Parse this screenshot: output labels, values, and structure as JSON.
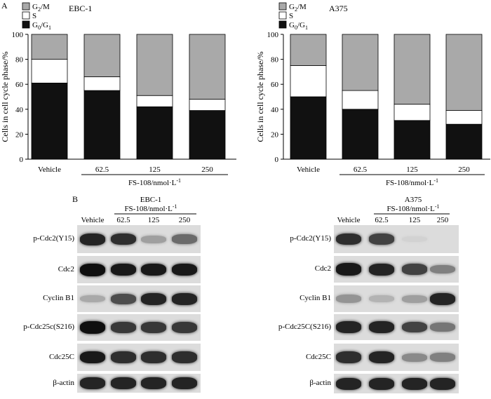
{
  "panel_a_letter": "A",
  "panel_b_letter": "B",
  "chart_data": [
    {
      "type": "bar",
      "stacked": true,
      "title": "EBC-1",
      "categories": [
        "Vehicle",
        "62.5",
        "125",
        "250"
      ],
      "xlabel": "FS-108/nmol·L",
      "xlabel_superscript": "-1",
      "ylabel": "Cells in cell cycle phase/%",
      "ylim": [
        0,
        100
      ],
      "yticks": [
        "0",
        "20",
        "40",
        "60",
        "80",
        "100"
      ],
      "legend_position": "top-left",
      "series": [
        {
          "name": "G0/G1",
          "color": "#111111",
          "values": [
            61,
            55,
            42,
            39
          ]
        },
        {
          "name": "S",
          "color": "#ffffff",
          "values": [
            19,
            11,
            9,
            9
          ]
        },
        {
          "name": "G2/M",
          "color": "#a9a9a9",
          "values": [
            20,
            34,
            49,
            52
          ]
        }
      ]
    },
    {
      "type": "bar",
      "stacked": true,
      "title": "A375",
      "categories": [
        "Vehicle",
        "62.5",
        "125",
        "250"
      ],
      "xlabel": "FS-108/nmol·L",
      "xlabel_superscript": "-1",
      "ylabel": "Cells in cell cycle phase/%",
      "ylim": [
        0,
        100
      ],
      "yticks": [
        "0",
        "20",
        "40",
        "60",
        "80",
        "100"
      ],
      "legend_position": "top-left",
      "series": [
        {
          "name": "G0/G1",
          "color": "#111111",
          "values": [
            50,
            40,
            31,
            28
          ]
        },
        {
          "name": "S",
          "color": "#ffffff",
          "values": [
            25,
            15,
            13,
            11
          ]
        },
        {
          "name": "G2/M",
          "color": "#a9a9a9",
          "values": [
            25,
            45,
            56,
            61
          ]
        }
      ]
    }
  ],
  "legend_labels": [
    {
      "main": "G",
      "sub": "2",
      "rest": "/M",
      "sub2": "",
      "color": "#a9a9a9"
    },
    {
      "main": "S",
      "sub": "",
      "rest": "",
      "sub2": "",
      "color": "#ffffff"
    },
    {
      "main": "G",
      "sub": "0",
      "rest": "/G",
      "sub2": "1",
      "color": "#111111"
    }
  ],
  "blots": [
    {
      "title": "EBC-1",
      "treatment_label": "FS-108/nmol·L",
      "treatment_superscript": "-1",
      "lanes": [
        "Vehicle",
        "62.5",
        "125",
        "250"
      ],
      "rows": [
        {
          "label": "p-Cdc2(Y15)",
          "intensity": [
            0.9,
            0.85,
            0.3,
            0.55
          ]
        },
        {
          "label": "Cdc2",
          "intensity": [
            1.0,
            0.95,
            0.95,
            0.95
          ]
        },
        {
          "label": "Cyclin B1",
          "intensity": [
            0.25,
            0.7,
            0.9,
            0.9
          ]
        },
        {
          "label": "p-Cdc25c(S216)",
          "intensity": [
            1.0,
            0.8,
            0.8,
            0.8
          ]
        },
        {
          "label": "Cdc25C",
          "intensity": [
            0.95,
            0.85,
            0.85,
            0.85
          ]
        },
        {
          "label": "β-actin",
          "intensity": [
            0.9,
            0.9,
            0.9,
            0.9
          ]
        }
      ]
    },
    {
      "title": "A375",
      "treatment_label": "FS-108/nmol·L",
      "treatment_superscript": "-1",
      "lanes": [
        "Vehicle",
        "62.5",
        "125",
        "250"
      ],
      "rows": [
        {
          "label": "p-Cdc2(Y15)",
          "intensity": [
            0.85,
            0.75,
            0.05,
            0.0
          ]
        },
        {
          "label": "Cdc2",
          "intensity": [
            0.95,
            0.9,
            0.75,
            0.45
          ]
        },
        {
          "label": "Cyclin B1",
          "intensity": [
            0.35,
            0.2,
            0.3,
            0.9
          ]
        },
        {
          "label": "p-Cdc25C(S216)",
          "intensity": [
            0.9,
            0.9,
            0.75,
            0.5
          ]
        },
        {
          "label": "Cdc25C",
          "intensity": [
            0.85,
            0.9,
            0.4,
            0.45
          ]
        },
        {
          "label": "β-actin",
          "intensity": [
            0.9,
            0.9,
            0.9,
            0.9
          ]
        }
      ]
    }
  ]
}
